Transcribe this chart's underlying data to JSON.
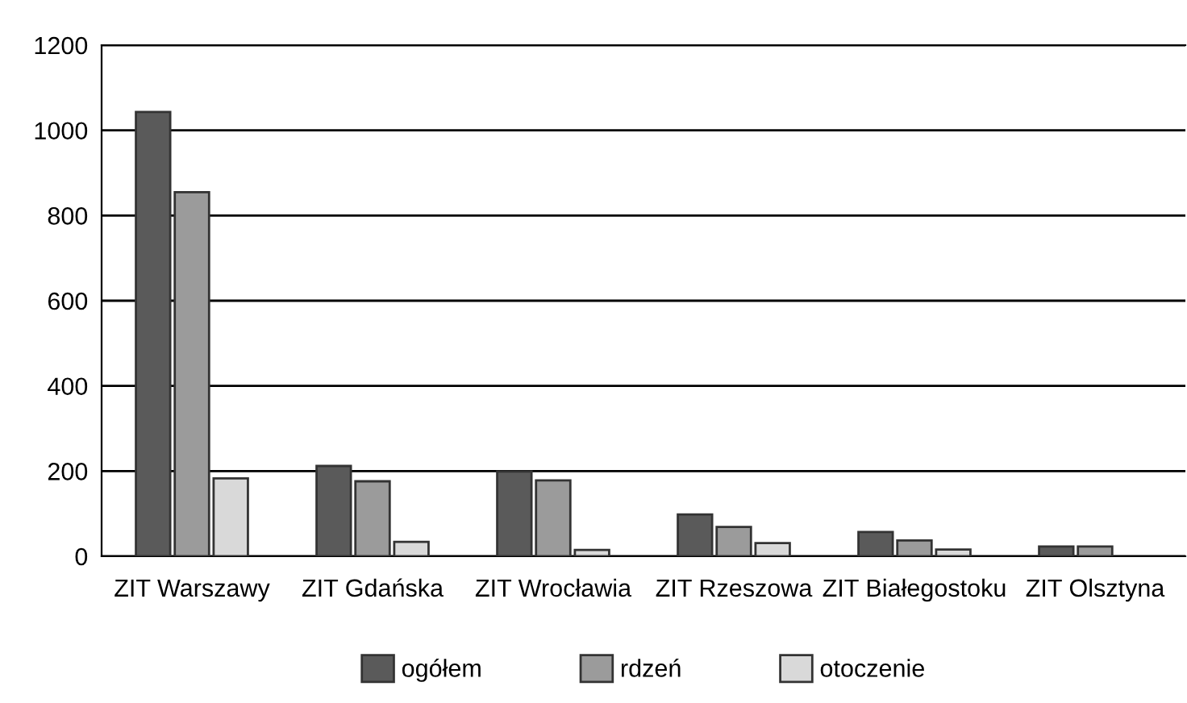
{
  "chart_data": {
    "type": "bar",
    "categories": [
      "ZIT Warszawy",
      "ZIT Gdańska",
      "ZIT Wrocławia",
      "ZIT Rzeszowa",
      "ZIT Białegostoku",
      "ZIT Olsztyna"
    ],
    "series": [
      {
        "name": "ogółem",
        "color": "#5a5a5a",
        "values": [
          1043,
          212,
          199,
          98,
          57,
          23
        ]
      },
      {
        "name": "rdzeń",
        "color": "#9b9b9b",
        "values": [
          855,
          176,
          178,
          69,
          37,
          23
        ]
      },
      {
        "name": "otoczenie",
        "color": "#d9d9d9",
        "values": [
          183,
          34,
          15,
          31,
          16,
          null
        ]
      }
    ],
    "ylim": [
      0,
      1200
    ],
    "yticks": [
      0,
      200,
      400,
      600,
      800,
      1000,
      1200
    ],
    "grid": "y",
    "legend": "bottom"
  }
}
